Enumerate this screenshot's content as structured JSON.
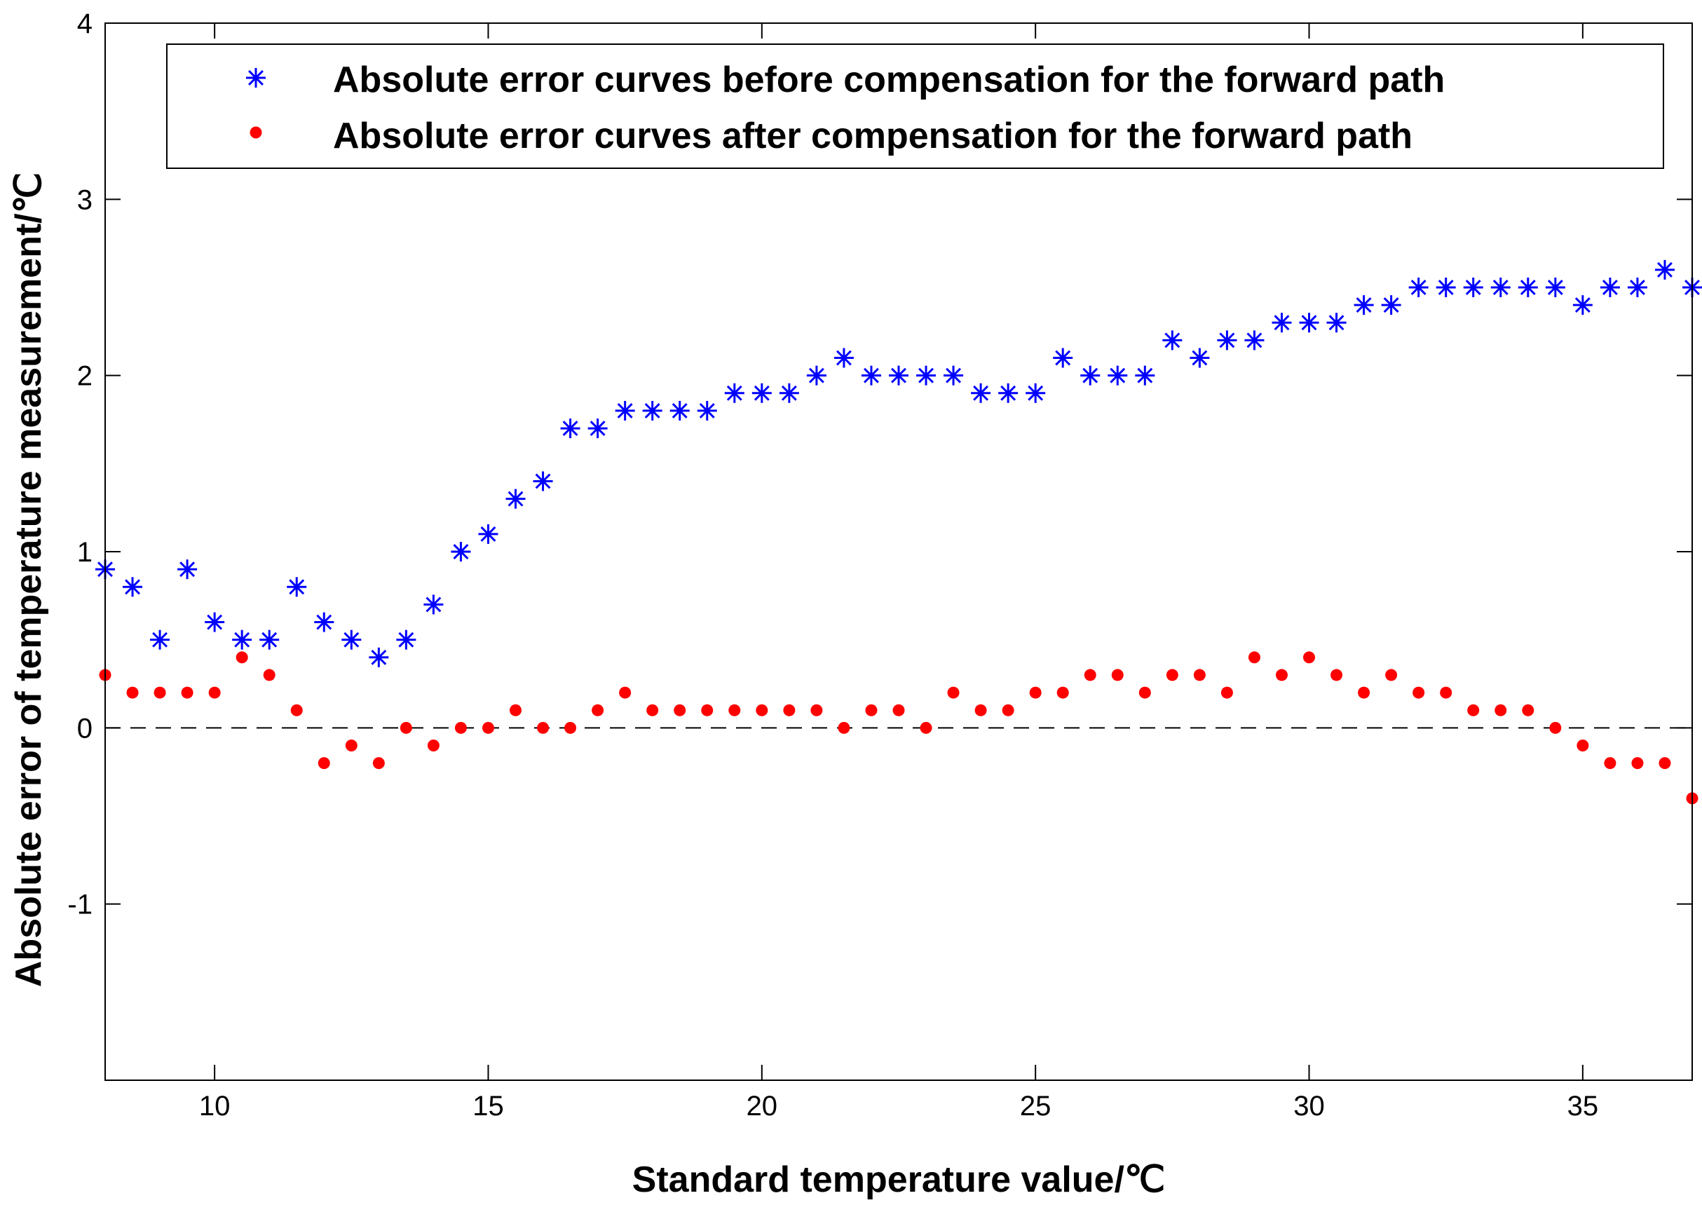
{
  "chart_data": {
    "type": "scatter",
    "xlabel": "Standard temperature value/℃",
    "ylabel": "Absolute error of temperature measurement/℃",
    "xlim": [
      8,
      37
    ],
    "ylim": [
      -2,
      4
    ],
    "xticks": [
      10,
      15,
      20,
      25,
      30,
      35
    ],
    "yticks": [
      -1,
      0,
      1,
      2,
      3,
      4
    ],
    "xtick_labels": [
      "10",
      "15",
      "20",
      "25",
      "30",
      "35"
    ],
    "ytick_labels": [
      "-1",
      "0",
      "1",
      "2",
      "3",
      "4"
    ],
    "grid": false,
    "legend_position": "top-right",
    "reference_line": {
      "y": 0,
      "style": "dashed"
    },
    "x": [
      8,
      8.5,
      9,
      9.5,
      10,
      10.5,
      11,
      11.5,
      12,
      12.5,
      13,
      13.5,
      14,
      14.5,
      15,
      15.5,
      16,
      16.5,
      17,
      17.5,
      18,
      18.5,
      19,
      19.5,
      20,
      20.5,
      21,
      21.5,
      22,
      22.5,
      23,
      23.5,
      24,
      24.5,
      25,
      25.5,
      26,
      26.5,
      27,
      27.5,
      28,
      28.5,
      29,
      29.5,
      30,
      30.5,
      31,
      31.5,
      32,
      32.5,
      33,
      33.5,
      34,
      34.5,
      35,
      35.5,
      36,
      36.5,
      37
    ],
    "series": [
      {
        "name": "Absolute error curves before compensation for the forward path",
        "marker": "asterisk",
        "color": "#0000ff",
        "values": [
          0.9,
          0.8,
          0.5,
          0.9,
          0.6,
          0.5,
          0.5,
          0.8,
          0.6,
          0.5,
          0.4,
          0.5,
          0.7,
          1.0,
          1.1,
          1.3,
          1.4,
          1.7,
          1.7,
          1.8,
          1.8,
          1.8,
          1.8,
          1.9,
          1.9,
          1.9,
          2.0,
          2.1,
          2.0,
          2.0,
          2.0,
          2.0,
          1.9,
          1.9,
          1.9,
          2.1,
          2.0,
          2.0,
          2.0,
          2.2,
          2.1,
          2.2,
          2.2,
          2.3,
          2.3,
          2.3,
          2.4,
          2.4,
          2.5,
          2.5,
          2.5,
          2.5,
          2.5,
          2.5,
          2.4,
          2.5,
          2.5,
          2.6,
          2.5
        ]
      },
      {
        "name": "Absolute error curves after compensation for the forward path",
        "marker": "dot",
        "color": "#ff0000",
        "values": [
          0.3,
          0.2,
          0.2,
          0.2,
          0.2,
          0.4,
          0.3,
          0.1,
          -0.2,
          -0.1,
          -0.2,
          0.0,
          -0.1,
          0.0,
          0.0,
          0.1,
          0.0,
          0.0,
          0.1,
          0.2,
          0.1,
          0.1,
          0.1,
          0.1,
          0.1,
          0.1,
          0.1,
          0.0,
          0.1,
          0.1,
          0.0,
          0.2,
          0.1,
          0.1,
          0.2,
          0.2,
          0.3,
          0.3,
          0.2,
          0.3,
          0.3,
          0.2,
          0.4,
          0.3,
          0.4,
          0.3,
          0.2,
          0.3,
          0.2,
          0.2,
          0.1,
          0.1,
          0.1,
          0.0,
          -0.1,
          -0.2,
          -0.2,
          -0.2,
          -0.4
        ]
      }
    ]
  }
}
